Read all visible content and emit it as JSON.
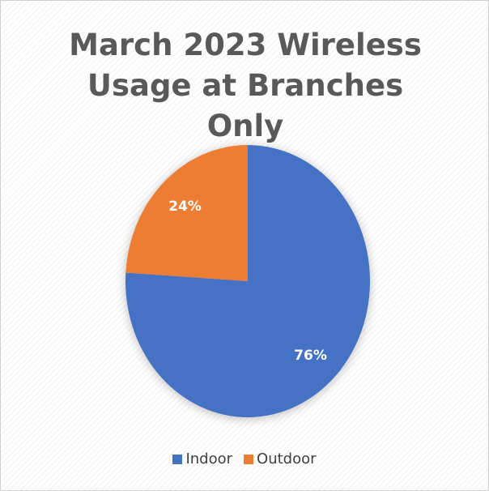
{
  "chart_data": {
    "type": "pie",
    "title": "March 2023 Wireless Usage at Branches Only",
    "categories": [
      "Indoor",
      "Outdoor"
    ],
    "values": [
      76,
      24
    ],
    "value_labels": [
      "76%",
      "24%"
    ],
    "colors": [
      "#4472c4",
      "#ed7d31"
    ],
    "legend": "bottom"
  }
}
